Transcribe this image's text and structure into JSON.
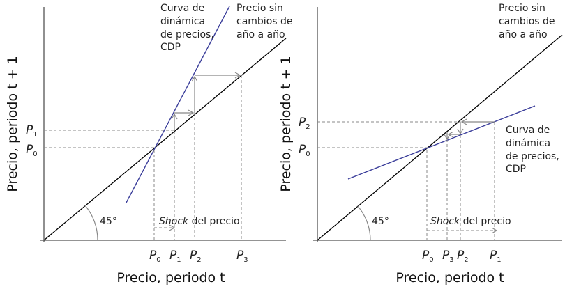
{
  "left": {
    "y_axis_label": "Precio, periodo t + 1",
    "x_axis_label": "Precio, periodo t",
    "cdp_label": [
      "Curva de",
      "dinámica",
      "de precios,",
      "CDP"
    ],
    "line45_label": [
      "Precio sin",
      "cambios de",
      "año a año"
    ],
    "angle_label": "45°",
    "shock_label_italic": "Shock",
    "shock_label_rest": " del precio",
    "x_ticks": [
      "0",
      "1",
      "2",
      "3"
    ],
    "y_ticks": [
      "1",
      "0"
    ],
    "p": "P"
  },
  "right": {
    "y_axis_label": "Precio, periodo t + 1",
    "x_axis_label": "Precio, periodo t",
    "cdp_label": [
      "Curva de",
      "dinámica",
      "de precios,",
      "CDP"
    ],
    "line45_label": [
      "Precio sin",
      "cambios de",
      "año a año"
    ],
    "angle_label": "45°",
    "shock_label_italic": "Shock",
    "shock_label_rest": " del precio",
    "x_ticks": [
      "0",
      "3",
      "2",
      "1"
    ],
    "y_ticks": [
      "2",
      "0"
    ],
    "p": "P"
  },
  "colors": {
    "cdp": "#3a3d9a",
    "line45": "#000000",
    "guides": "#888888"
  }
}
